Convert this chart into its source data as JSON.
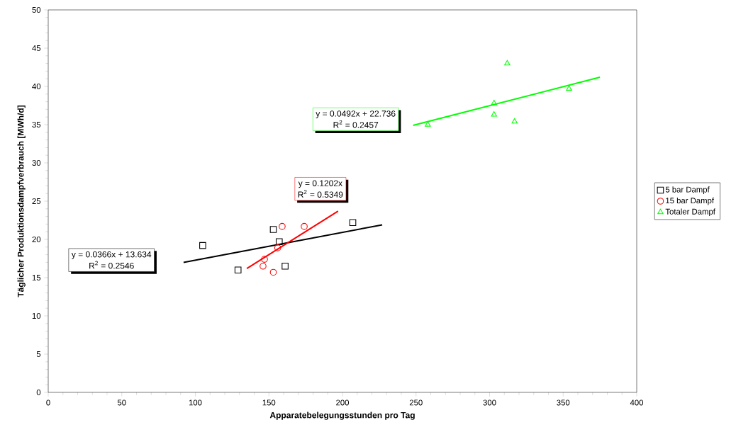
{
  "chart_data": {
    "type": "scatter",
    "xlabel": "Apparatebelegungsstunden pro Tag",
    "ylabel": "Täglicher Produktionsdampfverbrauch [MWh/d]",
    "xlim": [
      0,
      400
    ],
    "ylim": [
      0,
      50
    ],
    "xticks": [
      0,
      50,
      100,
      150,
      200,
      250,
      300,
      350,
      400
    ],
    "yticks": [
      0,
      5,
      10,
      15,
      20,
      25,
      30,
      35,
      40,
      45,
      50
    ],
    "grid": false,
    "legend": "right",
    "series": [
      {
        "name": "5 bar Dampf",
        "color": "#000000",
        "marker": "square",
        "x": [
          105,
          129,
          153,
          157,
          161,
          207
        ],
        "values": [
          19.2,
          16.0,
          21.3,
          19.7,
          16.5,
          22.2
        ]
      },
      {
        "name": "15 bar Dampf",
        "color": "#ff0000",
        "marker": "circle",
        "x": [
          146,
          147,
          153,
          156,
          159,
          174
        ],
        "values": [
          16.5,
          17.4,
          15.7,
          18.9,
          21.7,
          21.7
        ]
      },
      {
        "name": "Totaler Dampf",
        "color": "#00ff00",
        "marker": "triangle",
        "x": [
          258,
          303,
          303,
          312,
          317,
          354
        ],
        "values": [
          35.0,
          37.8,
          36.3,
          43.0,
          35.4,
          39.7
        ]
      },
      {
        "type": "line",
        "color": "#000000",
        "x": [
          92,
          227
        ],
        "values": [
          17.0,
          21.9
        ]
      },
      {
        "type": "line",
        "color": "#ff0000",
        "x": [
          135,
          197
        ],
        "values": [
          16.2,
          23.7
        ]
      },
      {
        "type": "line",
        "color": "#00ff00",
        "x": [
          248,
          375
        ],
        "values": [
          34.9,
          41.2
        ]
      }
    ],
    "annotations": [
      "y = 0.0366x + 13.634",
      "R$^{2}$ = 0.2546",
      "y = 0.1202x",
      "R$^{2}$ = 0.5349",
      "y = 0.0492x + 22.736",
      "R$^{2}$ = 0.2457"
    ]
  }
}
